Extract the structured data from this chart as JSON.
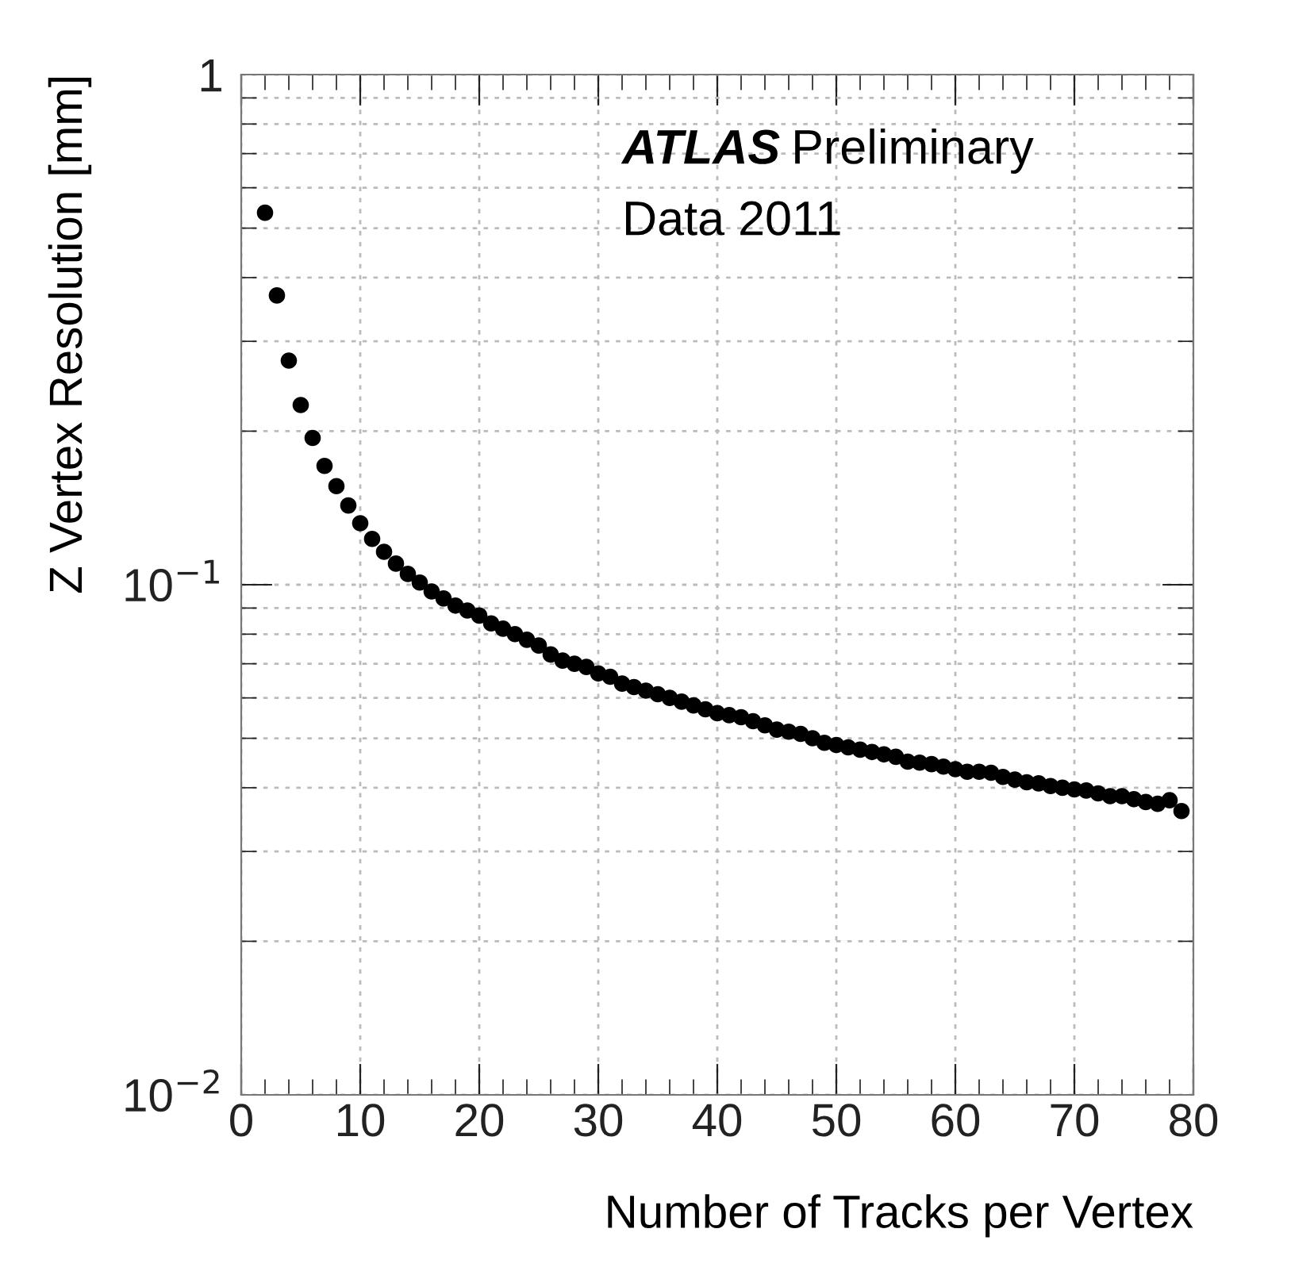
{
  "chart_data": {
    "type": "scatter",
    "xlabel": "Number of Tracks per Vertex",
    "ylabel": "Z Vertex Resolution [mm]",
    "annotations": [
      "ATLAS Preliminary",
      "Data 2011"
    ],
    "log": "y",
    "grid": true,
    "marker": "circle",
    "xlim": [
      0,
      80
    ],
    "xticks": [
      0,
      10,
      20,
      30,
      40,
      50,
      60,
      70,
      80
    ],
    "ylim": [
      0.01,
      1
    ],
    "yticks": [
      {
        "value": 0.01,
        "label": "10$^{−2}$"
      },
      {
        "value": 0.1,
        "label": "10$^{−1}$"
      },
      {
        "value": 1,
        "label": "1"
      }
    ],
    "series": [
      {
        "color": "#000000",
        "x": [
          2,
          3,
          4,
          5,
          6,
          7,
          8,
          9,
          10,
          11,
          12,
          13,
          14,
          15,
          16,
          17,
          18,
          19,
          20,
          21,
          22,
          23,
          24,
          25,
          26,
          27,
          28,
          29,
          30,
          31,
          32,
          33,
          34,
          35,
          36,
          37,
          38,
          39,
          40,
          41,
          42,
          43,
          44,
          45,
          46,
          47,
          48,
          49,
          50,
          51,
          52,
          53,
          54,
          55,
          56,
          57,
          58,
          59,
          60,
          61,
          62,
          63,
          64,
          65,
          66,
          67,
          68,
          69,
          70,
          71,
          72,
          73,
          74,
          75,
          76,
          77,
          78,
          79
        ],
        "values": [
          0.536,
          0.369,
          0.275,
          0.225,
          0.194,
          0.171,
          0.156,
          0.143,
          0.132,
          0.123,
          0.116,
          0.11,
          0.105,
          0.101,
          0.097,
          0.094,
          0.091,
          0.089,
          0.087,
          0.084,
          0.082,
          0.08,
          0.078,
          0.076,
          0.073,
          0.071,
          0.07,
          0.069,
          0.067,
          0.066,
          0.064,
          0.063,
          0.062,
          0.061,
          0.06,
          0.059,
          0.058,
          0.057,
          0.056,
          0.0555,
          0.055,
          0.054,
          0.053,
          0.052,
          0.0515,
          0.051,
          0.05,
          0.049,
          0.0485,
          0.048,
          0.0475,
          0.047,
          0.0465,
          0.046,
          0.045,
          0.0448,
          0.0445,
          0.044,
          0.0435,
          0.043,
          0.043,
          0.0428,
          0.042,
          0.0415,
          0.041,
          0.0408,
          0.0403,
          0.04,
          0.0397,
          0.0395,
          0.039,
          0.0385,
          0.0385,
          0.038,
          0.0375,
          0.0372,
          0.0378,
          0.036
        ]
      }
    ]
  }
}
